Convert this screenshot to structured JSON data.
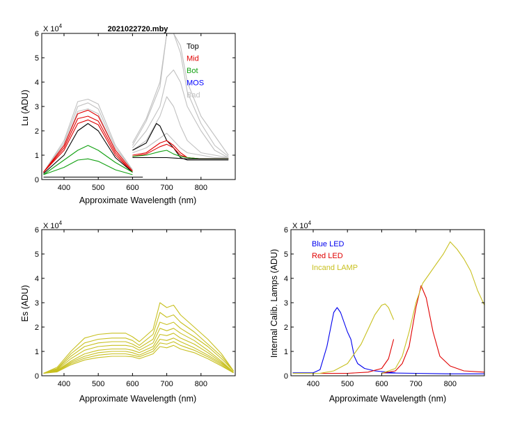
{
  "chart_data": [
    {
      "type": "line",
      "title": "2021022720.mby",
      "ylabel": "Lu (ADU)",
      "xlabel": "Approximate Wavelength (nm)",
      "exponent": "X 10",
      "exponent_power": "4",
      "xlim": [
        335,
        900
      ],
      "ylim": [
        0,
        6
      ],
      "xticks": [
        400,
        500,
        600,
        700,
        800
      ],
      "yticks": [
        0,
        1,
        2,
        3,
        4,
        5,
        6
      ],
      "legend": [
        "Top",
        "Mid",
        "Bot",
        "MOS",
        "Bad"
      ],
      "colors": {
        "Top": "#000000",
        "Mid": "#e00000",
        "Bot": "#10a010",
        "MOS": "#0000ff",
        "Bad": "#c0c0c0"
      },
      "series": [
        {
          "name": "Bad",
          "color": "#c0c0c0",
          "x": [
            340,
            400,
            440,
            470,
            500,
            550,
            600
          ],
          "y": [
            0.3,
            1.6,
            3.2,
            3.3,
            3.1,
            1.4,
            0.4
          ]
        },
        {
          "name": "Bad",
          "color": "#c0c0c0",
          "x": [
            340,
            400,
            440,
            470,
            500,
            550,
            600
          ],
          "y": [
            0.3,
            1.5,
            3.0,
            3.15,
            2.9,
            1.3,
            0.4
          ]
        },
        {
          "name": "Bad",
          "color": "#c0c0c0",
          "x": [
            340,
            400,
            440,
            470,
            500,
            550,
            600
          ],
          "y": [
            0.3,
            1.4,
            2.8,
            2.9,
            2.7,
            1.2,
            0.35
          ]
        },
        {
          "name": "Mid",
          "color": "#e00000",
          "x": [
            340,
            400,
            440,
            470,
            500,
            550,
            600
          ],
          "y": [
            0.3,
            1.4,
            2.7,
            2.85,
            2.6,
            1.2,
            0.35
          ]
        },
        {
          "name": "Mid",
          "color": "#e00000",
          "x": [
            340,
            400,
            440,
            470,
            500,
            550,
            600
          ],
          "y": [
            0.3,
            1.3,
            2.5,
            2.6,
            2.4,
            1.1,
            0.3
          ]
        },
        {
          "name": "Mid",
          "color": "#e00000",
          "x": [
            340,
            400,
            440,
            470,
            500,
            550,
            600
          ],
          "y": [
            0.3,
            1.2,
            2.3,
            2.45,
            2.25,
            1.0,
            0.3
          ]
        },
        {
          "name": "Top",
          "color": "#000000",
          "x": [
            340,
            400,
            440,
            470,
            500,
            550,
            600
          ],
          "y": [
            0.25,
            1.0,
            2.0,
            2.3,
            2.0,
            0.9,
            0.3
          ]
        },
        {
          "name": "Bot",
          "color": "#10a010",
          "x": [
            340,
            400,
            440,
            470,
            500,
            550,
            600
          ],
          "y": [
            0.2,
            0.8,
            1.2,
            1.4,
            1.2,
            0.7,
            0.3
          ]
        },
        {
          "name": "Bot",
          "color": "#10a010",
          "x": [
            340,
            400,
            440,
            470,
            500,
            550,
            600
          ],
          "y": [
            0.2,
            0.5,
            0.8,
            0.85,
            0.75,
            0.4,
            0.2
          ]
        },
        {
          "name": "Top",
          "color": "#000000",
          "x": [
            340,
            400,
            500,
            600,
            630
          ],
          "y": [
            0.1,
            0.1,
            0.1,
            0.1,
            0.1
          ]
        },
        {
          "name": "Bad",
          "color": "#c0c0c0",
          "x": [
            600,
            640,
            680,
            700,
            720,
            740,
            760,
            800,
            840,
            880
          ],
          "y": [
            1.5,
            2.5,
            4.0,
            6.0,
            6.0,
            5.5,
            4.0,
            2.6,
            1.8,
            1.0
          ]
        },
        {
          "name": "Bad",
          "color": "#c0c0c0",
          "x": [
            600,
            640,
            680,
            700,
            720,
            740,
            760,
            800,
            840,
            880
          ],
          "y": [
            1.4,
            2.4,
            3.8,
            6.0,
            6.0,
            5.2,
            3.6,
            2.3,
            1.4,
            0.95
          ]
        },
        {
          "name": "Bad",
          "color": "#c0c0c0",
          "x": [
            600,
            640,
            680,
            700,
            720,
            740,
            760,
            800,
            840,
            880
          ],
          "y": [
            1.3,
            2.0,
            3.0,
            4.2,
            4.5,
            4.0,
            3.0,
            2.0,
            1.2,
            0.9
          ]
        },
        {
          "name": "Bad",
          "color": "#c0c0c0",
          "x": [
            600,
            640,
            680,
            700,
            720,
            740,
            760,
            800,
            840,
            880
          ],
          "y": [
            1.2,
            1.6,
            2.6,
            3.4,
            3.0,
            2.2,
            1.6,
            1.1,
            1.0,
            0.9
          ]
        },
        {
          "name": "Bad",
          "color": "#c0c0c0",
          "x": [
            600,
            640,
            680,
            700,
            720,
            740,
            760,
            800,
            840,
            880
          ],
          "y": [
            1.1,
            1.3,
            1.7,
            1.9,
            1.6,
            1.3,
            1.1,
            1.0,
            0.9,
            0.9
          ]
        },
        {
          "name": "Top",
          "color": "#000000",
          "x": [
            600,
            640,
            670,
            680,
            700,
            720,
            740,
            760,
            800,
            880
          ],
          "y": [
            1.2,
            1.5,
            2.3,
            2.2,
            1.6,
            1.3,
            0.9,
            0.8,
            0.8,
            0.8
          ]
        },
        {
          "name": "Mid",
          "color": "#e00000",
          "x": [
            600,
            640,
            680,
            700,
            720,
            740,
            760,
            800,
            880
          ],
          "y": [
            1.0,
            1.1,
            1.5,
            1.6,
            1.4,
            1.1,
            0.9,
            0.85,
            0.85
          ]
        },
        {
          "name": "Mid",
          "color": "#e00000",
          "x": [
            600,
            640,
            680,
            700,
            720,
            740,
            760,
            800,
            880
          ],
          "y": [
            0.95,
            1.05,
            1.35,
            1.45,
            1.3,
            1.0,
            0.9,
            0.85,
            0.85
          ]
        },
        {
          "name": "Bot",
          "color": "#10a010",
          "x": [
            600,
            640,
            680,
            700,
            720,
            740,
            760,
            800,
            880
          ],
          "y": [
            0.95,
            1.0,
            1.15,
            1.2,
            1.05,
            0.95,
            0.9,
            0.85,
            0.85
          ]
        },
        {
          "name": "Top",
          "color": "#000000",
          "x": [
            600,
            640,
            700,
            760,
            800,
            880
          ],
          "y": [
            0.9,
            0.9,
            0.9,
            0.85,
            0.85,
            0.85
          ]
        }
      ]
    },
    {
      "type": "line",
      "title": "",
      "ylabel": "Es  (ADU)",
      "xlabel": "Approximate Wavelength (nm)",
      "exponent": "X 10",
      "exponent_power": "4",
      "xlim": [
        335,
        900
      ],
      "ylim": [
        0,
        6
      ],
      "xticks": [
        400,
        500,
        600,
        700,
        800
      ],
      "yticks": [
        0,
        1,
        2,
        3,
        4,
        5,
        6
      ],
      "legend": [],
      "series": [
        {
          "name": "Es",
          "color": "#c8c020",
          "x": [
            340,
            380,
            420,
            460,
            500,
            540,
            580,
            600,
            620,
            660,
            680,
            700,
            720,
            740,
            780,
            820,
            860,
            895
          ],
          "y": [
            0.1,
            0.35,
            1.0,
            1.55,
            1.7,
            1.75,
            1.75,
            1.6,
            1.4,
            1.9,
            3.0,
            2.8,
            2.9,
            2.5,
            2.0,
            1.5,
            0.9,
            0.2
          ]
        },
        {
          "name": "Es",
          "color": "#c8c020",
          "x": [
            340,
            380,
            420,
            460,
            500,
            540,
            580,
            600,
            620,
            660,
            680,
            700,
            720,
            740,
            780,
            820,
            860,
            895
          ],
          "y": [
            0.1,
            0.3,
            0.9,
            1.35,
            1.5,
            1.55,
            1.55,
            1.45,
            1.25,
            1.7,
            2.6,
            2.4,
            2.5,
            2.2,
            1.8,
            1.3,
            0.8,
            0.2
          ]
        },
        {
          "name": "Es",
          "color": "#c8c020",
          "x": [
            340,
            380,
            420,
            460,
            500,
            540,
            580,
            600,
            620,
            660,
            680,
            700,
            720,
            740,
            780,
            820,
            860,
            895
          ],
          "y": [
            0.1,
            0.28,
            0.8,
            1.2,
            1.35,
            1.4,
            1.4,
            1.3,
            1.15,
            1.5,
            2.2,
            2.1,
            2.2,
            1.95,
            1.6,
            1.2,
            0.7,
            0.2
          ]
        },
        {
          "name": "Es",
          "color": "#c8c020",
          "x": [
            340,
            380,
            420,
            460,
            500,
            540,
            580,
            600,
            620,
            660,
            680,
            700,
            720,
            740,
            780,
            820,
            860,
            895
          ],
          "y": [
            0.1,
            0.25,
            0.7,
            1.05,
            1.2,
            1.25,
            1.25,
            1.2,
            1.05,
            1.35,
            1.95,
            1.85,
            1.95,
            1.75,
            1.45,
            1.05,
            0.6,
            0.15
          ]
        },
        {
          "name": "Es",
          "color": "#c8c020",
          "x": [
            340,
            380,
            420,
            460,
            500,
            540,
            580,
            600,
            620,
            660,
            680,
            700,
            720,
            740,
            780,
            820,
            860,
            895
          ],
          "y": [
            0.1,
            0.22,
            0.6,
            0.9,
            1.05,
            1.1,
            1.1,
            1.05,
            0.95,
            1.2,
            1.7,
            1.65,
            1.75,
            1.55,
            1.3,
            0.95,
            0.55,
            0.15
          ]
        },
        {
          "name": "Es",
          "color": "#c8c020",
          "x": [
            340,
            380,
            420,
            460,
            500,
            540,
            580,
            600,
            620,
            660,
            680,
            700,
            720,
            740,
            780,
            820,
            860,
            895
          ],
          "y": [
            0.1,
            0.2,
            0.55,
            0.8,
            0.95,
            1.0,
            1.0,
            0.95,
            0.85,
            1.1,
            1.5,
            1.45,
            1.55,
            1.4,
            1.15,
            0.85,
            0.5,
            0.15
          ]
        },
        {
          "name": "Es",
          "color": "#c8c020",
          "x": [
            340,
            380,
            420,
            460,
            500,
            540,
            580,
            600,
            620,
            660,
            680,
            700,
            720,
            740,
            780,
            820,
            860,
            895
          ],
          "y": [
            0.1,
            0.18,
            0.5,
            0.72,
            0.85,
            0.9,
            0.9,
            0.85,
            0.78,
            1.0,
            1.35,
            1.3,
            1.4,
            1.25,
            1.05,
            0.78,
            0.45,
            0.12
          ]
        },
        {
          "name": "Es",
          "color": "#c8c020",
          "x": [
            340,
            380,
            420,
            460,
            500,
            540,
            580,
            600,
            620,
            660,
            680,
            700,
            720,
            740,
            780,
            820,
            860,
            895
          ],
          "y": [
            0.1,
            0.16,
            0.45,
            0.65,
            0.75,
            0.8,
            0.8,
            0.78,
            0.7,
            0.9,
            1.2,
            1.15,
            1.25,
            1.1,
            0.95,
            0.7,
            0.4,
            0.12
          ]
        }
      ]
    },
    {
      "type": "line",
      "title": "",
      "ylabel": "Internal Calib. Lamps  (ADU)",
      "xlabel": "Approximate Wavelength (nm)",
      "exponent": "X 10",
      "exponent_power": "4",
      "xlim": [
        335,
        900
      ],
      "ylim": [
        0,
        6
      ],
      "xticks": [
        400,
        500,
        600,
        700,
        800
      ],
      "yticks": [
        0,
        1,
        2,
        3,
        4,
        5,
        6
      ],
      "legend": [
        "Blue LED",
        "Red LED",
        "Incand LAMP"
      ],
      "colors": {
        "Blue LED": "#0000ee",
        "Red LED": "#e00000",
        "Incand LAMP": "#c8c020"
      },
      "series": [
        {
          "name": "Blue LED",
          "color": "#0000ee",
          "x": [
            340,
            400,
            420,
            440,
            460,
            470,
            480,
            500,
            510,
            520,
            530,
            550,
            580,
            620,
            640
          ],
          "y": [
            0.12,
            0.12,
            0.25,
            1.2,
            2.6,
            2.8,
            2.6,
            1.8,
            1.5,
            0.8,
            0.5,
            0.3,
            0.2,
            0.15,
            0.12
          ]
        },
        {
          "name": "Blue LED",
          "color": "#0000ee",
          "x": [
            600,
            700,
            800,
            900
          ],
          "y": [
            0.12,
            0.1,
            0.08,
            0.08
          ]
        },
        {
          "name": "Red LED",
          "color": "#e00000",
          "x": [
            340,
            400,
            500,
            560,
            600,
            620,
            635
          ],
          "y": [
            0.1,
            0.1,
            0.1,
            0.15,
            0.3,
            0.7,
            1.5
          ]
        },
        {
          "name": "Red LED",
          "color": "#e00000",
          "x": [
            600,
            640,
            660,
            680,
            700,
            715,
            730,
            750,
            770,
            800,
            840,
            900
          ],
          "y": [
            0.1,
            0.2,
            0.5,
            1.2,
            2.8,
            3.7,
            3.2,
            1.8,
            0.8,
            0.4,
            0.2,
            0.15
          ]
        },
        {
          "name": "Incand LAMP",
          "color": "#c8c020",
          "x": [
            340,
            420,
            460,
            500,
            520,
            540,
            560,
            580,
            600,
            610,
            620,
            635
          ],
          "y": [
            0.1,
            0.1,
            0.2,
            0.5,
            0.9,
            1.3,
            1.9,
            2.5,
            2.9,
            2.95,
            2.8,
            2.3
          ]
        },
        {
          "name": "Incand LAMP",
          "color": "#c8c020",
          "x": [
            600,
            640,
            660,
            680,
            700,
            720,
            740,
            760,
            780,
            800,
            820,
            840,
            860,
            880,
            900
          ],
          "y": [
            0.1,
            0.3,
            0.8,
            1.8,
            3.0,
            3.8,
            4.2,
            4.6,
            5.0,
            5.5,
            5.2,
            4.8,
            4.3,
            3.5,
            2.9
          ]
        }
      ]
    }
  ]
}
